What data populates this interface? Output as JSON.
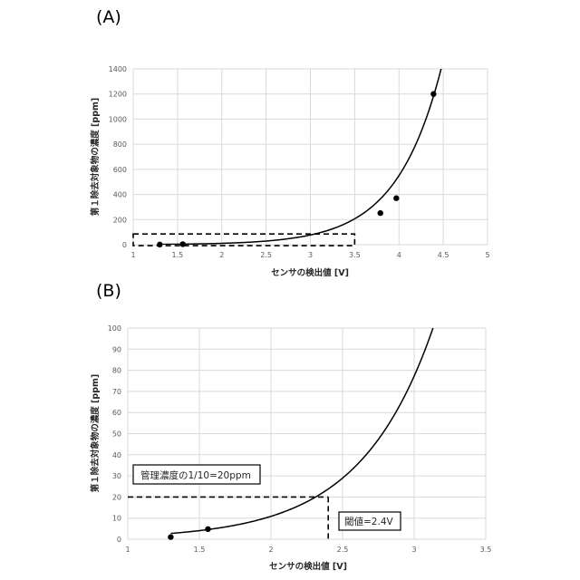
{
  "chart_data": [
    {
      "type": "scatter",
      "panel_label": "(A)",
      "xlabel": "センサの検出値 [V]",
      "ylabel": "第１除去対象物の濃度 [ppm]",
      "xlim": [
        1,
        5
      ],
      "ylim": [
        0,
        1400
      ],
      "x_ticks": [
        "1",
        "1.5",
        "2",
        "2.5",
        "3",
        "3.5",
        "4",
        "4.5",
        "5"
      ],
      "y_ticks": [
        "0",
        "200",
        "400",
        "600",
        "800",
        "1000",
        "1200",
        "1400"
      ],
      "grid": true,
      "series": [
        {
          "points": [
            {
              "x": 1.3,
              "y": 1
            },
            {
              "x": 1.56,
              "y": 4
            },
            {
              "x": 3.79,
              "y": 252
            },
            {
              "x": 3.97,
              "y": 370
            },
            {
              "x": 4.39,
              "y": 1200
            }
          ],
          "trendline": {
            "type": "exponential",
            "a": 0.2137,
            "b": 1.9634
          }
        }
      ],
      "annotations": [
        {
          "type": "dashed-box",
          "x_range": [
            1,
            3.5
          ],
          "y_range": [
            -8,
            85
          ]
        }
      ]
    },
    {
      "type": "scatter",
      "panel_label": "(B)",
      "xlabel": "センサの検出値 [V]",
      "ylabel": "第１除去対象物の濃度 [ppm]",
      "xlim": [
        1,
        3.5
      ],
      "ylim": [
        0,
        100
      ],
      "x_ticks": [
        "1",
        "1.5",
        "2",
        "2.5",
        "3",
        "3.5"
      ],
      "y_ticks": [
        "0",
        "10",
        "20",
        "30",
        "40",
        "50",
        "60",
        "70",
        "80",
        "90",
        "100"
      ],
      "grid": true,
      "series": [
        {
          "points": [
            {
              "x": 1.3,
              "y": 1
            },
            {
              "x": 1.56,
              "y": 4.8
            }
          ],
          "trendline": {
            "type": "exponential",
            "a": 0.2137,
            "b": 1.9634
          }
        }
      ],
      "annotations": [
        {
          "type": "text-box",
          "text": "管理濃度の1/10=20ppm"
        },
        {
          "type": "threshold-line",
          "x": 2.4,
          "y": 20
        },
        {
          "type": "text-box",
          "text": "閾値=2.4V"
        }
      ]
    }
  ]
}
